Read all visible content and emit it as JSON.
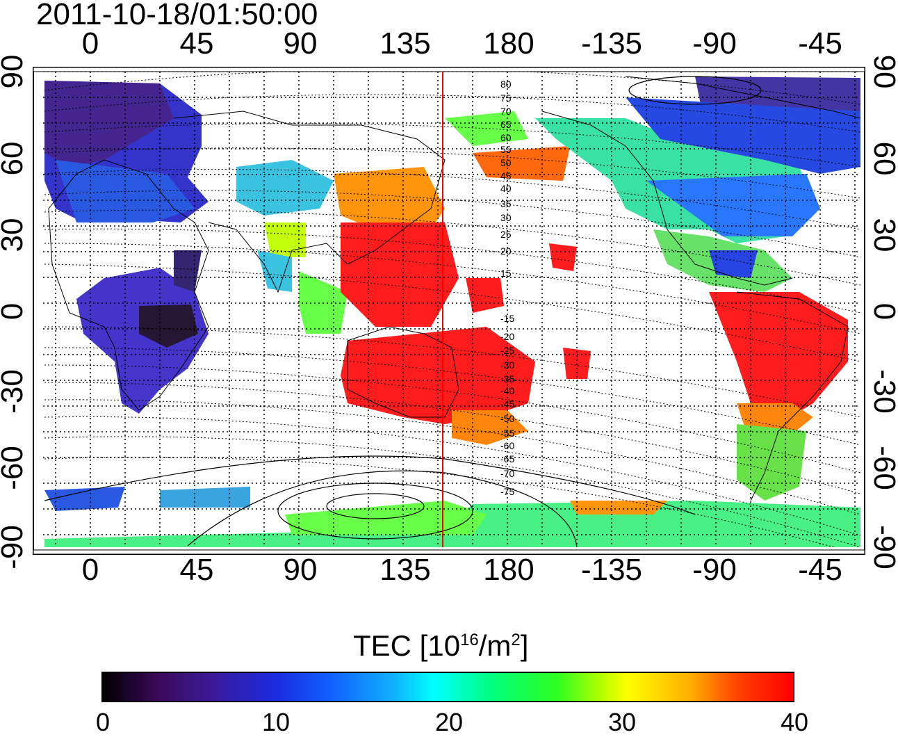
{
  "title": "2011-10-18/01:50:00",
  "map": {
    "top_lon_labels": [
      "0",
      "45",
      "90",
      "135",
      "180",
      "-135",
      "-90",
      "-45"
    ],
    "bottom_lon_labels": [
      "0",
      "45",
      "90",
      "135",
      "180",
      "-135",
      "-90",
      "-45"
    ],
    "left_lat_labels": [
      "90",
      "60",
      "30",
      "0",
      "-30",
      "-60",
      "-90"
    ],
    "right_lat_labels": [
      "90",
      "60",
      "30",
      "0",
      "-30",
      "-60",
      "-90"
    ],
    "contour_labels": [
      "80",
      "75",
      "70",
      "65",
      "60",
      "55",
      "50",
      "45",
      "40",
      "35",
      "30",
      "25",
      "20",
      "15",
      "-15",
      "-20",
      "-25",
      "-30",
      "-35",
      "-40",
      "-45",
      "-50",
      "-55",
      "-60",
      "-65",
      "-70",
      "-75"
    ],
    "marker_line_color": "#ff0000",
    "grid": true
  },
  "colorbar": {
    "title_main": "TEC  [10",
    "title_exp": "16",
    "title_unit": "/m",
    "title_exp2": "2",
    "title_close": "]",
    "labels": [
      "0",
      "10",
      "20",
      "30",
      "40"
    ],
    "min": 0,
    "max": 40
  }
}
